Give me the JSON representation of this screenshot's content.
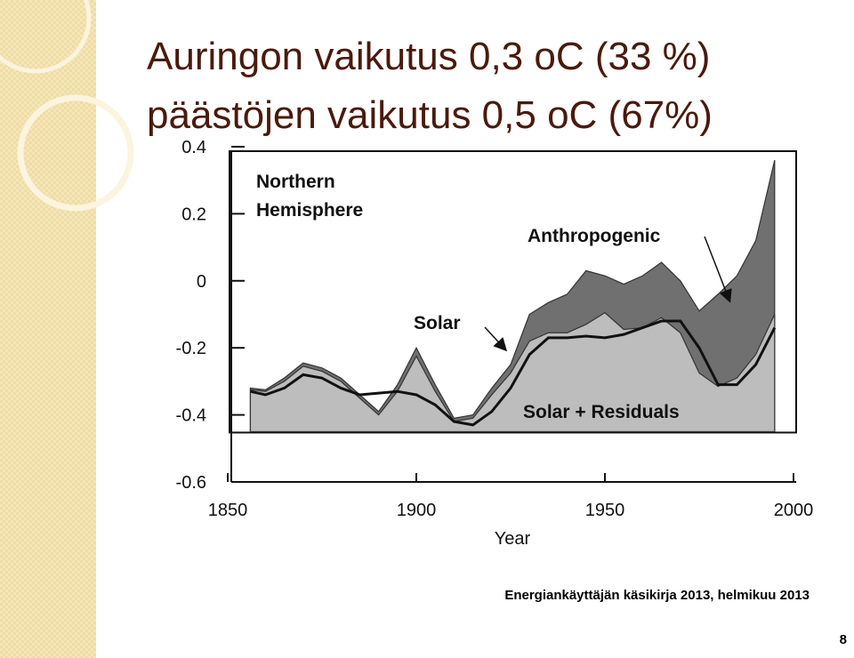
{
  "slide": {
    "title_lines": [
      "Auringon vaikutus 0,3 oC (33 %)",
      "päästöjen vaikutus 0,5 oC (67%)"
    ],
    "footer": "Energiankäyttäjän käsikirja 2013, helmikuu 2013",
    "page_number": "8"
  },
  "chart_data": {
    "type": "area",
    "title": [
      "Northern",
      "Hemisphere"
    ],
    "x_label": "Year",
    "x": [
      1856,
      1860,
      1865,
      1870,
      1875,
      1880,
      1885,
      1890,
      1895,
      1900,
      1905,
      1910,
      1915,
      1920,
      1925,
      1930,
      1935,
      1940,
      1945,
      1950,
      1955,
      1960,
      1965,
      1970,
      1975,
      1980,
      1985,
      1990,
      1995
    ],
    "baseline": -0.45,
    "series": [
      {
        "name": "Anthropogenic",
        "color": "#707070",
        "kind": "area",
        "values": [
          -0.32,
          -0.325,
          -0.29,
          -0.245,
          -0.26,
          -0.29,
          -0.34,
          -0.39,
          -0.31,
          -0.2,
          -0.31,
          -0.41,
          -0.4,
          -0.32,
          -0.25,
          -0.1,
          -0.065,
          -0.04,
          0.03,
          0.015,
          -0.01,
          0.015,
          0.055,
          0.0,
          -0.09,
          -0.04,
          0.015,
          0.12,
          0.36
        ]
      },
      {
        "name": "Solar + Residuals",
        "color": "#bdbdbd",
        "kind": "area",
        "values": [
          -0.325,
          -0.33,
          -0.3,
          -0.255,
          -0.27,
          -0.3,
          -0.35,
          -0.4,
          -0.33,
          -0.225,
          -0.33,
          -0.42,
          -0.41,
          -0.34,
          -0.275,
          -0.18,
          -0.155,
          -0.155,
          -0.13,
          -0.095,
          -0.145,
          -0.14,
          -0.11,
          -0.155,
          -0.275,
          -0.315,
          -0.29,
          -0.22,
          -0.1
        ]
      },
      {
        "name": "Solar",
        "color": "#111111",
        "kind": "line",
        "values": [
          -0.33,
          -0.34,
          -0.32,
          -0.28,
          -0.29,
          -0.32,
          -0.34,
          -0.335,
          -0.33,
          -0.34,
          -0.37,
          -0.42,
          -0.43,
          -0.39,
          -0.32,
          -0.22,
          -0.17,
          -0.17,
          -0.165,
          -0.17,
          -0.16,
          -0.14,
          -0.12,
          -0.12,
          -0.2,
          -0.31,
          -0.31,
          -0.25,
          -0.14
        ]
      }
    ],
    "xlim": [
      1850,
      2000
    ],
    "xticks": [
      1850,
      1900,
      1950,
      2000
    ],
    "ylim": [
      -0.6,
      0.4
    ],
    "yticks": [
      -0.6,
      -0.4,
      -0.2,
      0,
      0.2,
      0.4
    ],
    "grid": false
  }
}
